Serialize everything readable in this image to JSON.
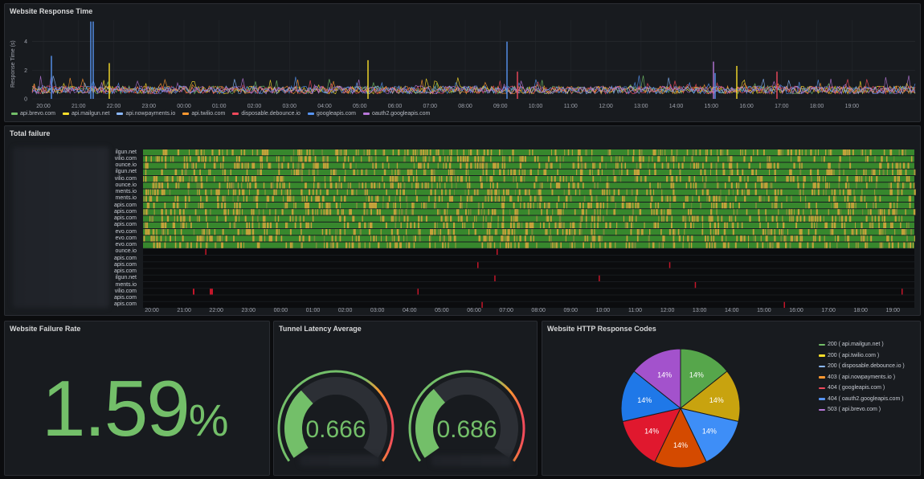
{
  "panels": {
    "response_time": {
      "title": "Website Response Time",
      "ylabel": "Response Time (s)",
      "y_ticks": [
        "0",
        "2",
        "4"
      ],
      "x_ticks": [
        "20:00",
        "21:00",
        "22:00",
        "23:00",
        "00:00",
        "01:00",
        "02:00",
        "03:00",
        "04:00",
        "05:00",
        "06:00",
        "07:00",
        "08:00",
        "09:00",
        "10:00",
        "11:00",
        "12:00",
        "13:00",
        "14:00",
        "15:00",
        "16:00",
        "17:00",
        "18:00",
        "19:00"
      ],
      "legend": [
        {
          "label": "api.brevo.com",
          "color": "#73bf69"
        },
        {
          "label": "api.mailgun.net",
          "color": "#fade2a"
        },
        {
          "label": "api.nowpayments.io",
          "color": "#8ab8ff"
        },
        {
          "label": "api.twilio.com",
          "color": "#ff9830"
        },
        {
          "label": "disposable.debounce.io",
          "color": "#f2495c"
        },
        {
          "label": "googleapis.com",
          "color": "#5794f2"
        },
        {
          "label": "oauth2.googleapis.com",
          "color": "#b877d9"
        }
      ]
    },
    "total_failure": {
      "title": "Total failure",
      "rows": [
        "ilgun.net",
        "vilio.com",
        "ounce.io",
        "ilgun.net",
        "vilio.com",
        "ounce.io",
        "ments.io",
        "ments.io",
        "apis.com",
        "apis.com",
        "apis.com",
        "apis.com",
        "evo.com",
        "evo.com",
        "evo.com",
        "ounce.io",
        "apis.com",
        "apis.com",
        "apis.com",
        "ilgun.net",
        "ments.io",
        "vilio.com",
        "apis.com",
        "apis.com"
      ],
      "x_ticks": [
        "20:00",
        "21:00",
        "22:00",
        "23:00",
        "00:00",
        "01:00",
        "02:00",
        "03:00",
        "04:00",
        "05:00",
        "06:00",
        "07:00",
        "08:00",
        "09:00",
        "10:00",
        "11:00",
        "12:00",
        "13:00",
        "14:00",
        "15:00",
        "16:00",
        "17:00",
        "18:00",
        "19:00"
      ]
    },
    "failure_rate": {
      "title": "Website Failure Rate",
      "value": "1.59",
      "unit": "%"
    },
    "tunnel_latency": {
      "title": "Tunnel Latency Average",
      "gauges": [
        {
          "value": "0.666",
          "fraction": 0.33
        },
        {
          "value": "0.686",
          "fraction": 0.34
        }
      ]
    },
    "http_codes": {
      "title": "Website HTTP Response Codes",
      "legend": [
        {
          "label": "200 ( api.mailgun.net )",
          "color": "#73bf69"
        },
        {
          "label": "200 ( api.twilio.com )",
          "color": "#fade2a"
        },
        {
          "label": "200 ( disposable.debounce.io )",
          "color": "#8ab8ff"
        },
        {
          "label": "403 ( api.nowpayments.io )",
          "color": "#ff9830"
        },
        {
          "label": "404 ( googleapis.com )",
          "color": "#f2495c"
        },
        {
          "label": "404 ( oauth2.googleapis.com )",
          "color": "#5794f2"
        },
        {
          "label": "503 ( api.brevo.com )",
          "color": "#b877d9"
        }
      ]
    }
  },
  "chart_data": [
    {
      "type": "pie",
      "title": "Website HTTP Response Codes",
      "categories": [
        "200 ( api.mailgun.net )",
        "200 ( api.twilio.com )",
        "200 ( disposable.debounce.io )",
        "403 ( api.nowpayments.io )",
        "404 ( googleapis.com )",
        "404 ( oauth2.googleapis.com )",
        "503 ( api.brevo.com )"
      ],
      "values": [
        14,
        14,
        14,
        14,
        14,
        14,
        14
      ],
      "slice_colors": [
        "#56a64b",
        "#c8a30f",
        "#3e8ef7",
        "#d44a00",
        "#e0182e",
        "#1f78e8",
        "#a352cc"
      ],
      "labels": [
        "14%",
        "14%",
        "14%",
        "14%",
        "14%",
        "14%",
        "14%"
      ]
    }
  ]
}
